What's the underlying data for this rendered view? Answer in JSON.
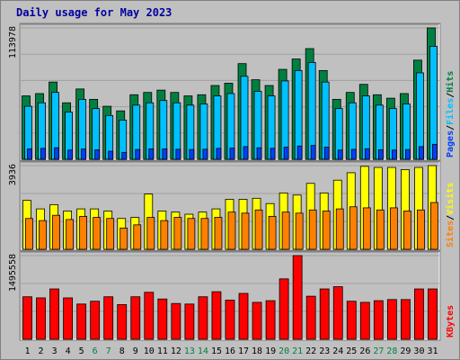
{
  "chart_data": [
    {
      "type": "bar",
      "title": "Daily usage for May 2023",
      "categories": [
        "1",
        "2",
        "3",
        "4",
        "5",
        "6",
        "7",
        "8",
        "9",
        "10",
        "11",
        "12",
        "13",
        "14",
        "15",
        "16",
        "17",
        "18",
        "19",
        "20",
        "21",
        "22",
        "23",
        "24",
        "25",
        "26",
        "27",
        "28",
        "29",
        "30",
        "31"
      ],
      "weekend_days": [
        "6",
        "7",
        "13",
        "14",
        "20",
        "21",
        "27",
        "28"
      ],
      "ymax_label": "113978",
      "ylim": [
        0,
        113978
      ],
      "axis_legend": [
        "Pages",
        "/",
        "Files",
        "/",
        "Hits"
      ],
      "series": [
        {
          "name": "Hits",
          "color": "#008040",
          "values": [
            55000,
            57000,
            67000,
            49000,
            61000,
            52000,
            46000,
            42000,
            56000,
            58000,
            60000,
            58000,
            55000,
            56000,
            64000,
            66000,
            83000,
            69000,
            64000,
            78000,
            87000,
            96000,
            77000,
            52000,
            58000,
            65000,
            56000,
            53000,
            57000,
            86000,
            113978
          ]
        },
        {
          "name": "Files",
          "color": "#00c0ff",
          "values": [
            46000,
            49000,
            58000,
            41000,
            52000,
            44000,
            38000,
            34000,
            47000,
            49000,
            51000,
            49000,
            47000,
            48000,
            55000,
            57000,
            72000,
            59000,
            55000,
            68000,
            77000,
            84000,
            67000,
            44000,
            49000,
            55000,
            47000,
            44000,
            48000,
            75000,
            98000
          ]
        },
        {
          "name": "Pages",
          "color": "#0040ff",
          "values": [
            9000,
            9500,
            10000,
            8000,
            9000,
            8200,
            7000,
            6000,
            8500,
            9000,
            9000,
            8700,
            8500,
            8700,
            9500,
            9700,
            11000,
            10000,
            9500,
            10500,
            11500,
            12000,
            10500,
            8000,
            8600,
            9200,
            8300,
            8000,
            8500,
            11000,
            13000
          ]
        }
      ]
    },
    {
      "type": "bar",
      "categories": [
        "1",
        "2",
        "3",
        "4",
        "5",
        "6",
        "7",
        "8",
        "9",
        "10",
        "11",
        "12",
        "13",
        "14",
        "15",
        "16",
        "17",
        "18",
        "19",
        "20",
        "21",
        "22",
        "23",
        "24",
        "25",
        "26",
        "27",
        "28",
        "29",
        "30",
        "31"
      ],
      "ymax_label": "3936",
      "ylim": [
        0,
        3936
      ],
      "axis_legend": [
        "Sites",
        "/",
        "Visits"
      ],
      "series": [
        {
          "name": "Visits",
          "color": "#ffff00",
          "values": [
            2300,
            1900,
            2100,
            1800,
            1900,
            1900,
            1800,
            1450,
            1500,
            2600,
            1800,
            1750,
            1650,
            1750,
            1900,
            2350,
            2350,
            2400,
            2150,
            2650,
            2550,
            3100,
            2650,
            3250,
            3600,
            3900,
            3850,
            3850,
            3750,
            3850,
            3936
          ]
        },
        {
          "name": "Sites",
          "color": "#ff8000",
          "values": [
            1450,
            1350,
            1600,
            1400,
            1550,
            1500,
            1450,
            1000,
            1150,
            1500,
            1350,
            1500,
            1450,
            1450,
            1500,
            1750,
            1700,
            1850,
            1550,
            1750,
            1700,
            1850,
            1800,
            1900,
            2000,
            1950,
            1850,
            1950,
            1800,
            1850,
            2200
          ]
        }
      ]
    },
    {
      "type": "bar",
      "categories": [
        "1",
        "2",
        "3",
        "4",
        "5",
        "6",
        "7",
        "8",
        "9",
        "10",
        "11",
        "12",
        "13",
        "14",
        "15",
        "16",
        "17",
        "18",
        "19",
        "20",
        "21",
        "22",
        "23",
        "24",
        "25",
        "26",
        "27",
        "28",
        "29",
        "30",
        "31"
      ],
      "ymax_label": "1495558",
      "ylim": [
        0,
        1495558
      ],
      "axis_legend": [
        "KBytes"
      ],
      "series": [
        {
          "name": "KBytes",
          "color": "#ff0000",
          "values": [
            760000,
            740000,
            900000,
            740000,
            630000,
            680000,
            760000,
            620000,
            760000,
            840000,
            720000,
            640000,
            630000,
            760000,
            850000,
            700000,
            820000,
            660000,
            690000,
            1080000,
            1495558,
            770000,
            900000,
            940000,
            680000,
            660000,
            690000,
            710000,
            710000,
            900000,
            900000
          ]
        }
      ]
    }
  ]
}
